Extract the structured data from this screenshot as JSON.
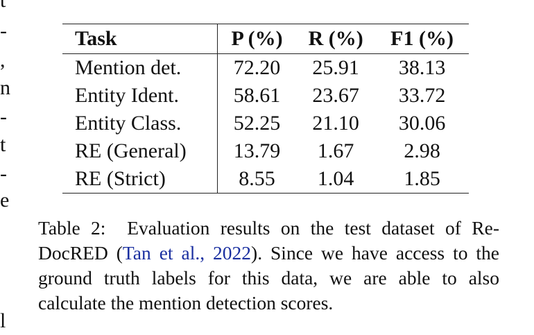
{
  "left_margin_fragments": [
    "t",
    "-",
    ",",
    "n",
    "-",
    "t",
    "-",
    "e",
    "l"
  ],
  "table": {
    "headers": [
      "Task",
      "P (%)",
      "R (%)",
      "F1 (%)"
    ],
    "rows": [
      {
        "task": "Mention det.",
        "p": "72.20",
        "r": "25.91",
        "f1": "38.13"
      },
      {
        "task": "Entity Ident.",
        "p": "58.61",
        "r": "23.67",
        "f1": "33.72"
      },
      {
        "task": "Entity Class.",
        "p": "52.25",
        "r": "21.10",
        "f1": "30.06"
      },
      {
        "task": "RE (General)",
        "p": "13.79",
        "r": "1.67",
        "f1": "2.98"
      },
      {
        "task": "RE (Strict)",
        "p": "8.55",
        "r": "1.04",
        "f1": "1.85"
      }
    ]
  },
  "caption": {
    "label": "Table 2:",
    "text_before": "Evaluation results on the test dataset of Re-DocRED (",
    "citation": "Tan et al., 2022",
    "text_after": "). Since we have access to the ground truth labels for this data, we are able to also calculate the mention detection scores.",
    "citation_color": "#1a2fa0"
  }
}
